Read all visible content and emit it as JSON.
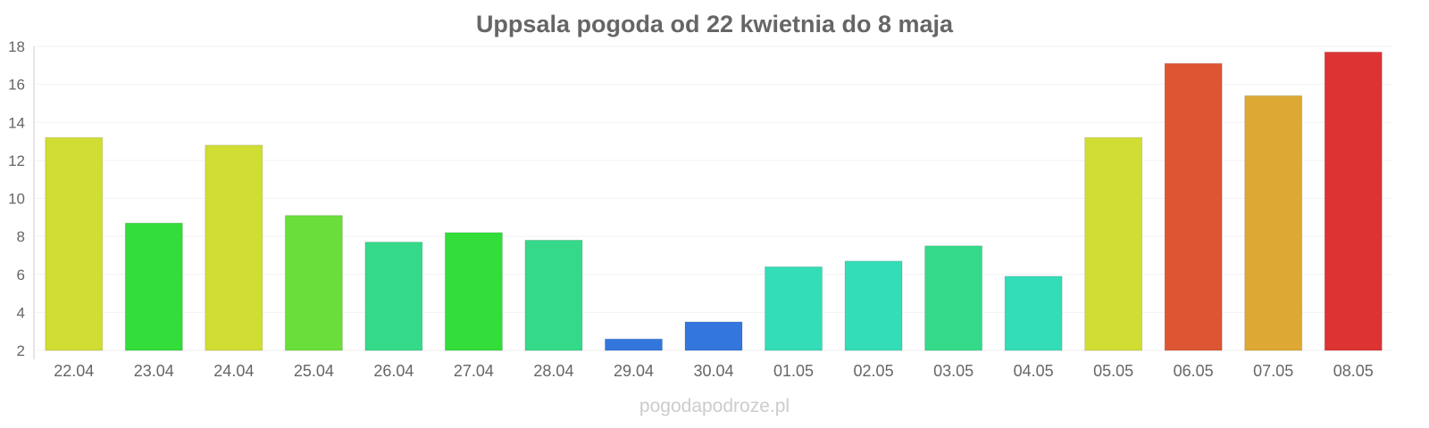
{
  "chart_data": {
    "type": "bar",
    "title": "Uppsala pogoda od 22 kwietnia do 8 maja",
    "xlabel": "",
    "ylabel": "",
    "ylim": [
      2,
      18
    ],
    "yticks": [
      2,
      4,
      6,
      8,
      10,
      12,
      14,
      16,
      18
    ],
    "grid": true,
    "categories": [
      "22.04",
      "23.04",
      "24.04",
      "25.04",
      "26.04",
      "27.04",
      "28.04",
      "29.04",
      "30.04",
      "01.05",
      "02.05",
      "03.05",
      "04.05",
      "05.05",
      "06.05",
      "07.05",
      "08.05"
    ],
    "values": [
      13.2,
      8.7,
      12.8,
      9.1,
      7.7,
      8.2,
      7.8,
      2.6,
      3.5,
      6.4,
      6.7,
      7.5,
      5.9,
      13.2,
      17.1,
      15.4,
      17.7
    ],
    "colors": [
      "#d0dd33",
      "#33dd3a",
      "#d0dd33",
      "#6ade3a",
      "#35d98a",
      "#33dd3a",
      "#35d98a",
      "#3377dd",
      "#3377dd",
      "#33ddb8",
      "#33ddb8",
      "#35d98a",
      "#33ddb8",
      "#d0dd33",
      "#dd5533",
      "#dda833",
      "#dd3333"
    ]
  },
  "footer": "pogodapodroze.pl"
}
